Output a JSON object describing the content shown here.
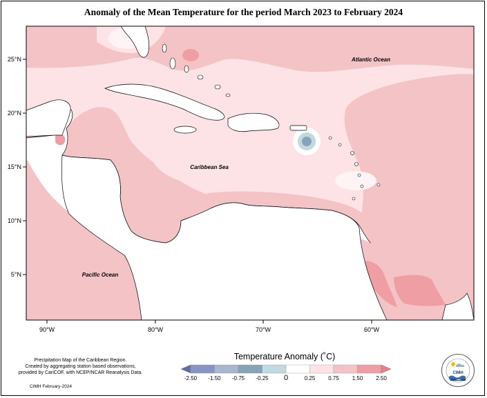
{
  "title": "Anomaly of the Mean Temperature for the period March 2023 to February 2024",
  "map": {
    "lat_ticks": [
      "25°N",
      "20°N",
      "15°N",
      "10°N",
      "5°N"
    ],
    "lon_ticks": [
      "90°W",
      "80°W",
      "70°W",
      "60°W"
    ],
    "labels": {
      "atlantic": "Atlantic Ocean",
      "caribbean": "Caribbean Sea",
      "pacific": "Pacific Ocean"
    }
  },
  "legend": {
    "title": "Temperature Anomaly (˚C)",
    "tick_labels": [
      "-2.50",
      "-1.50",
      "-0.75",
      "-0.25",
      "0",
      "0.25",
      "0.75",
      "1.50",
      "2.50"
    ],
    "colors": [
      "#5e6ea4",
      "#8795c4",
      "#a8b6d0",
      "#87a3b8",
      "#c3d9e0",
      "#ffffff",
      "#fde3e5",
      "#f4c3c6",
      "#ef9ea3",
      "#ec7f86"
    ]
  },
  "credits": {
    "lines": [
      "Precipitation Map of the Caribbean Region.",
      "Created by aggregating station based observations,",
      "provided by CariCOF, with NCEP/NCAR Reanalysis Data."
    ],
    "date": "CIMH February-2024"
  },
  "logo": {
    "name": "CIMH",
    "ring_text": "CARIBBEAN INSTITUTE FOR METEOROLOGY AND HYDROLOGY"
  }
}
